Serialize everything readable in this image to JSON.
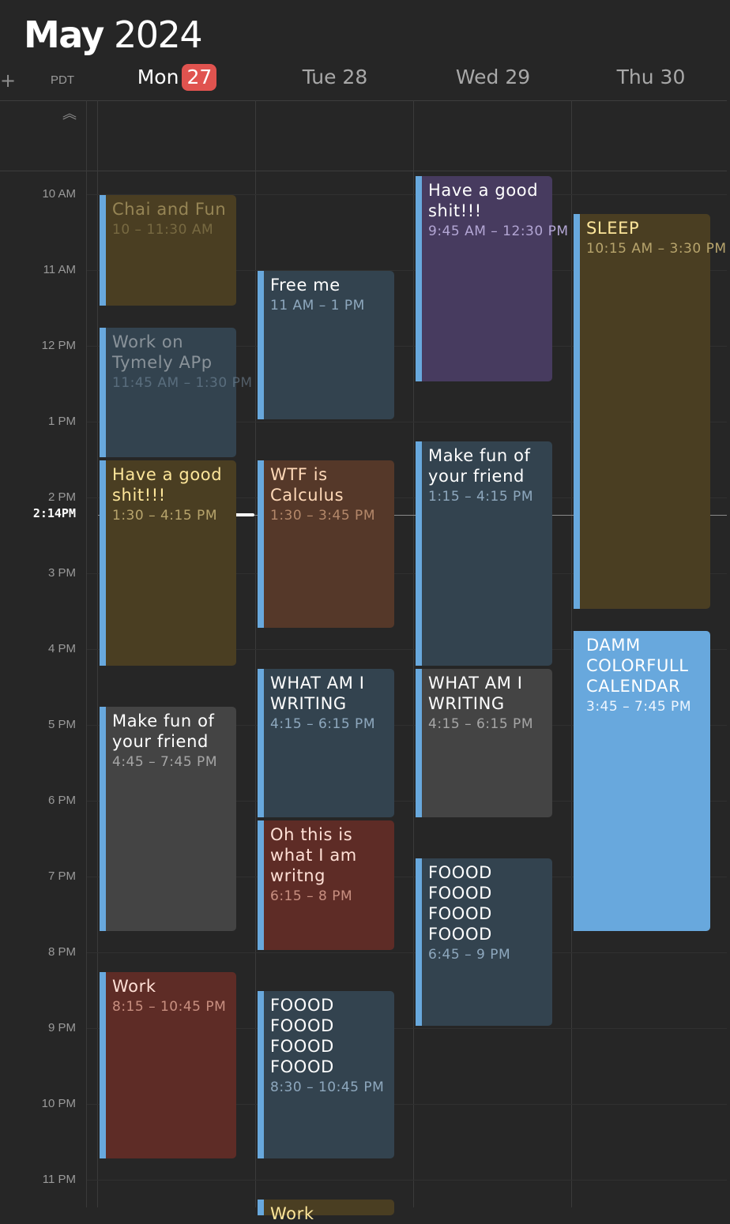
{
  "header": {
    "month": "May",
    "year": "2024",
    "add_symbol": "+",
    "timezone": "PDT",
    "collapse_symbol": "︽"
  },
  "days": [
    {
      "name": "Mon",
      "num": "27",
      "today": true
    },
    {
      "name": "Tue",
      "num": "28",
      "today": false
    },
    {
      "name": "Wed",
      "num": "29",
      "today": false
    },
    {
      "name": "Thu",
      "num": "30",
      "today": false
    }
  ],
  "hours": [
    "10 AM",
    "11 AM",
    "12 PM",
    "1 PM",
    "2 PM",
    "3 PM",
    "4 PM",
    "5 PM",
    "6 PM",
    "7 PM",
    "8 PM",
    "9 PM",
    "10 PM",
    "11 PM"
  ],
  "now_label": "2:14PM",
  "colors": {
    "accent_today": "#e0534f",
    "event_bar": "#68a8dd"
  },
  "events": [
    {
      "day": 0,
      "title": "Chai and Fun",
      "time": "10 – 11:30 AM",
      "color": "olive",
      "dim": true
    },
    {
      "day": 0,
      "title": "Work on Tymely APp",
      "time": "11:45 AM – 1:30 PM",
      "color": "slate",
      "dim": true
    },
    {
      "day": 0,
      "title": "Have a good shit!!!",
      "time": "1:30 – 4:15 PM",
      "color": "olive",
      "dim": false
    },
    {
      "day": 0,
      "title": "Make fun of your friend",
      "time": "4:45 – 7:45 PM",
      "color": "gray",
      "dim": false
    },
    {
      "day": 0,
      "title": "Work",
      "time": "8:15 – 10:45 PM",
      "color": "red",
      "dim": false
    },
    {
      "day": 1,
      "title": "Free me",
      "time": "11 AM – 1 PM",
      "color": "slate",
      "dim": false
    },
    {
      "day": 1,
      "title": "WTF is Calculus",
      "time": "1:30 – 3:45 PM",
      "color": "brown",
      "dim": false
    },
    {
      "day": 1,
      "title": "WHAT AM I WRITING",
      "time": "4:15 – 6:15 PM",
      "color": "slate",
      "dim": false
    },
    {
      "day": 1,
      "title": "Oh this is what I am writng",
      "time": "6:15 – 8 PM",
      "color": "red",
      "dim": false
    },
    {
      "day": 1,
      "title": "FOOOD FOOOD FOOOD FOOOD",
      "time": "8:30 – 10:45 PM",
      "color": "slate",
      "dim": false
    },
    {
      "day": 1,
      "title": "Work",
      "time": "",
      "color": "olive",
      "dim": false
    },
    {
      "day": 2,
      "title": "Have a good shit!!!",
      "time": "9:45 AM – 12:30 PM",
      "color": "purple",
      "dim": false
    },
    {
      "day": 2,
      "title": "Make fun of your friend",
      "time": "1:15 – 4:15 PM",
      "color": "slate",
      "dim": false
    },
    {
      "day": 2,
      "title": "WHAT AM I WRITING",
      "time": "4:15 – 6:15 PM",
      "color": "gray",
      "dim": false
    },
    {
      "day": 2,
      "title": "FOOOD FOOOD FOOOD FOOOD",
      "time": "6:45 – 9 PM",
      "color": "slate",
      "dim": false
    },
    {
      "day": 3,
      "title": "SLEEP",
      "time": "10:15 AM – 3:30 PM",
      "color": "olive",
      "dim": false
    },
    {
      "day": 3,
      "title": "DAMM COLORFULL CALENDAR",
      "time": "3:45 – 7:45 PM",
      "color": "blue",
      "dim": false
    }
  ]
}
